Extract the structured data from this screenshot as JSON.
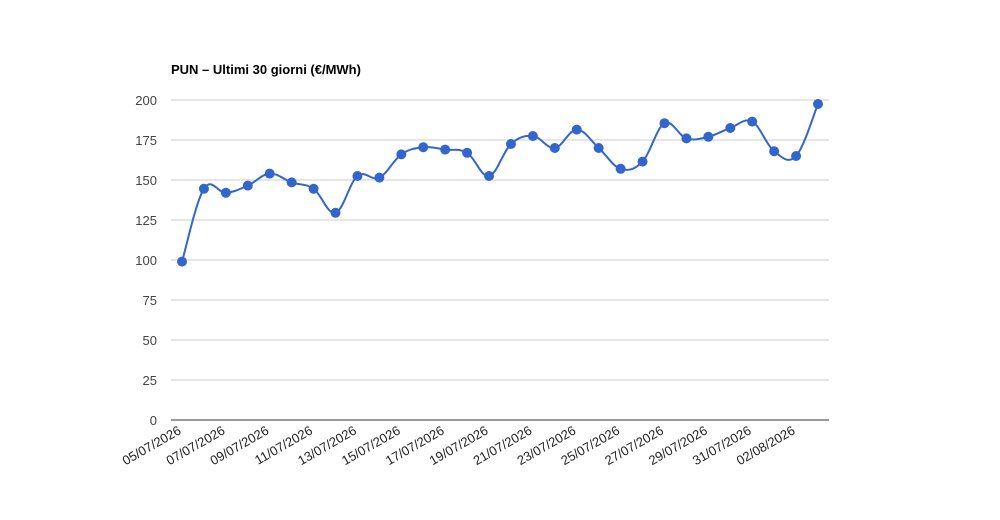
{
  "chart_data": {
    "type": "line",
    "title": "PUN – Ultimi 30 giorni (€/MWh)",
    "xlabel": "",
    "ylabel": "",
    "ylim": [
      0,
      200
    ],
    "yticks": [
      "0",
      "25",
      "50",
      "75",
      "100",
      "125",
      "150",
      "175",
      "200"
    ],
    "grid": true,
    "legend": "none",
    "x": [
      "05/07/2026",
      "06/07/2026",
      "07/07/2026",
      "08/07/2026",
      "09/07/2026",
      "10/07/2026",
      "11/07/2026",
      "12/07/2026",
      "13/07/2026",
      "14/07/2026",
      "15/07/2026",
      "16/07/2026",
      "17/07/2026",
      "18/07/2026",
      "19/07/2026",
      "20/07/2026",
      "21/07/2026",
      "22/07/2026",
      "23/07/2026",
      "24/07/2026",
      "25/07/2026",
      "26/07/2026",
      "27/07/2026",
      "28/07/2026",
      "29/07/2026",
      "30/07/2026",
      "31/07/2026",
      "01/08/2026",
      "02/08/2026",
      "03/08/2026"
    ],
    "xtick_labels": [
      "05/07/2026",
      "07/07/2026",
      "09/07/2026",
      "11/07/2026",
      "13/07/2026",
      "15/07/2026",
      "17/07/2026",
      "19/07/2026",
      "21/07/2026",
      "23/07/2026",
      "25/07/2026",
      "27/07/2026",
      "29/07/2026",
      "31/07/2026",
      "02/08/2026"
    ],
    "series": [
      {
        "values": [
          99,
          144.5,
          142,
          146.5,
          154,
          148.5,
          144.5,
          129.5,
          152.5,
          151.5,
          166,
          170.5,
          169,
          167,
          152.5,
          172.5,
          177.5,
          170,
          181.5,
          170,
          157,
          161.5,
          185.5,
          176,
          177,
          182.5,
          186.5,
          168,
          165,
          197.5
        ]
      }
    ],
    "colors": {
      "line": "#3366cc",
      "grid": "#cccccc",
      "axis": "#333333"
    }
  }
}
